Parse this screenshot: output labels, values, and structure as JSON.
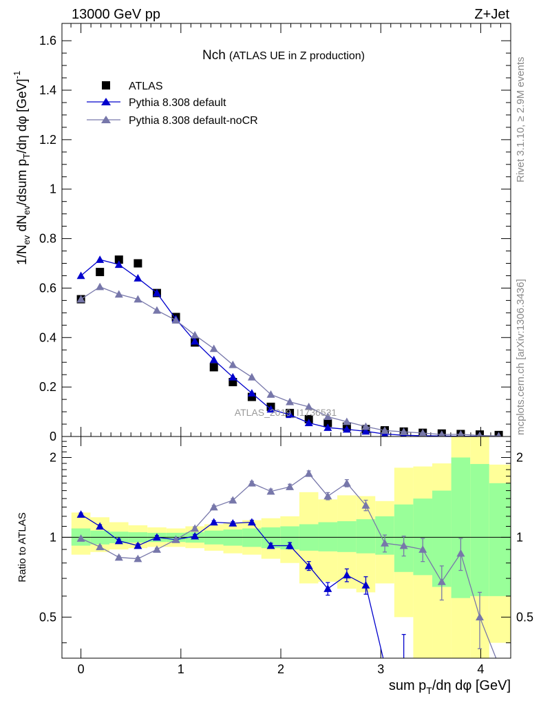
{
  "header": {
    "energy_label": "13000 GeV pp",
    "process_label": "Z+Jet"
  },
  "side_labels": {
    "rivet": "Rivet 3.1.10, ≥ 2.9M events",
    "mcplots": "mcplots.cern.ch [arXiv:1306.3436]"
  },
  "watermark": "ATLAS_2019_I1736531",
  "chart_data": [
    {
      "type": "scatter",
      "title": "Nch",
      "subtitle": "(ATLAS UE in Z production)",
      "ylabel": "1/N_ev dN_ev/dsum p_T/dη dφ [GeV]^-1",
      "ylim": [
        0,
        1.67
      ],
      "yticks": [
        0,
        0.2,
        0.4,
        0.6,
        0.8,
        1,
        1.2,
        1.4,
        1.6
      ],
      "ytick_labels": [
        "0",
        "0.2",
        "0.4",
        "0.6",
        "0.8",
        "1",
        "1.2",
        "1.4",
        "1.6"
      ],
      "xlim": [
        -0.19,
        4.3
      ],
      "legend_position": "top-left",
      "series": [
        {
          "name": "ATLAS",
          "marker": "square",
          "color": "#000000",
          "x": [
            0.0,
            0.19,
            0.38,
            0.57,
            0.76,
            0.95,
            1.14,
            1.33,
            1.52,
            1.71,
            1.9,
            2.09,
            2.28,
            2.47,
            2.66,
            2.85,
            3.04,
            3.23,
            3.42,
            3.61,
            3.8,
            3.99,
            4.18
          ],
          "y": [
            0.555,
            0.665,
            0.715,
            0.7,
            0.58,
            0.483,
            0.38,
            0.28,
            0.22,
            0.16,
            0.12,
            0.095,
            0.07,
            0.055,
            0.04,
            0.03,
            0.025,
            0.02,
            0.015,
            0.012,
            0.01,
            0.008,
            0.006
          ]
        },
        {
          "name": "Pythia 8.308 default",
          "marker": "triangle",
          "color": "#0000cc",
          "x": [
            0.0,
            0.19,
            0.38,
            0.57,
            0.76,
            0.95,
            1.14,
            1.33,
            1.52,
            1.71,
            1.9,
            2.09,
            2.28,
            2.47,
            2.66,
            2.85,
            3.04,
            3.23,
            3.42,
            3.61,
            3.8,
            3.99,
            4.18
          ],
          "y": [
            0.65,
            0.715,
            0.695,
            0.64,
            0.58,
            0.475,
            0.385,
            0.31,
            0.24,
            0.175,
            0.11,
            0.088,
            0.055,
            0.036,
            0.029,
            0.021,
            0.01,
            0.005,
            0.003,
            0.002,
            0.001,
            0.001,
            0.001
          ]
        },
        {
          "name": "Pythia 8.308 default-noCR",
          "marker": "triangle",
          "color": "#7777aa",
          "x": [
            0.0,
            0.19,
            0.38,
            0.57,
            0.76,
            0.95,
            1.14,
            1.33,
            1.52,
            1.71,
            1.9,
            2.09,
            2.28,
            2.47,
            2.66,
            2.85,
            3.04,
            3.23,
            3.42,
            3.61,
            3.8,
            3.99,
            4.18
          ],
          "y": [
            0.555,
            0.605,
            0.575,
            0.555,
            0.51,
            0.47,
            0.41,
            0.355,
            0.29,
            0.24,
            0.17,
            0.14,
            0.12,
            0.08,
            0.06,
            0.04,
            0.024,
            0.019,
            0.014,
            0.008,
            0.009,
            0.004,
            0.002
          ]
        }
      ]
    },
    {
      "type": "line",
      "ylabel": "Ratio to ATLAS",
      "xlabel": "sum p_T/dη dφ [GeV]",
      "ylim": [
        0.35,
        2.4
      ],
      "yticks": [
        0.5,
        1,
        2
      ],
      "ytick_labels": [
        "0.5",
        "1",
        "2"
      ],
      "xlim": [
        -0.19,
        4.3
      ],
      "xticks": [
        0,
        1,
        2,
        3,
        4
      ],
      "xtick_labels": [
        "0",
        "1",
        "2",
        "3",
        "4"
      ],
      "reference_line": 1,
      "bands": {
        "x_edges": [
          -0.095,
          0.095,
          0.285,
          0.475,
          0.665,
          0.855,
          1.045,
          1.235,
          1.425,
          1.615,
          1.805,
          1.995,
          2.185,
          2.375,
          2.565,
          2.755,
          2.945,
          3.135,
          3.325,
          3.515,
          3.705,
          3.895,
          4.085,
          4.3
        ],
        "outer_low": [
          0.86,
          0.88,
          0.9,
          0.91,
          0.92,
          0.92,
          0.91,
          0.89,
          0.87,
          0.86,
          0.83,
          0.8,
          0.67,
          0.68,
          0.64,
          0.62,
          0.67,
          0.5,
          0.3,
          0.3,
          0.3,
          0.3,
          0.4
        ],
        "outer_high": [
          1.24,
          1.19,
          1.14,
          1.11,
          1.09,
          1.08,
          1.1,
          1.12,
          1.14,
          1.16,
          1.18,
          1.2,
          1.48,
          1.39,
          1.44,
          1.43,
          1.37,
          1.83,
          1.85,
          1.9,
          2.4,
          2.4,
          1.88
        ],
        "inner_low": [
          0.93,
          0.94,
          0.95,
          0.955,
          0.96,
          0.96,
          0.955,
          0.94,
          0.93,
          0.92,
          0.91,
          0.9,
          0.89,
          0.885,
          0.88,
          0.87,
          0.86,
          0.74,
          0.72,
          0.65,
          0.59,
          0.6,
          0.6
        ],
        "inner_high": [
          1.08,
          1.06,
          1.05,
          1.045,
          1.04,
          1.04,
          1.045,
          1.06,
          1.07,
          1.08,
          1.09,
          1.1,
          1.12,
          1.14,
          1.15,
          1.17,
          1.2,
          1.33,
          1.4,
          1.5,
          2.0,
          1.89,
          1.6
        ],
        "outer_color": "#ffff99",
        "inner_color": "#99ff99"
      },
      "series": [
        {
          "name": "Pythia 8.308 default",
          "marker": "triangle",
          "color": "#0000cc",
          "x": [
            0.0,
            0.19,
            0.38,
            0.57,
            0.76,
            0.95,
            1.14,
            1.33,
            1.52,
            1.71,
            1.9,
            2.09,
            2.28,
            2.47,
            2.66,
            2.85,
            3.04,
            3.23
          ],
          "y": [
            1.22,
            1.1,
            0.97,
            0.93,
            1.0,
            0.98,
            1.01,
            1.14,
            1.13,
            1.14,
            0.93,
            0.93,
            0.78,
            0.64,
            0.72,
            0.66,
            0.33,
            0.33
          ],
          "err": [
            0.015,
            0.015,
            0.015,
            0.015,
            0.015,
            0.015,
            0.015,
            0.015,
            0.015,
            0.02,
            0.02,
            0.025,
            0.03,
            0.035,
            0.04,
            0.05,
            0.0,
            0.1
          ]
        },
        {
          "name": "Pythia 8.308 default-noCR",
          "marker": "triangle",
          "color": "#7777aa",
          "x": [
            0.0,
            0.19,
            0.38,
            0.57,
            0.76,
            0.95,
            1.14,
            1.33,
            1.52,
            1.71,
            1.9,
            2.09,
            2.28,
            2.47,
            2.66,
            2.85,
            3.04,
            3.23,
            3.42,
            3.61,
            3.8,
            3.99,
            4.18
          ],
          "y": [
            0.99,
            0.92,
            0.84,
            0.83,
            0.9,
            0.98,
            1.08,
            1.3,
            1.38,
            1.6,
            1.49,
            1.55,
            1.74,
            1.43,
            1.6,
            1.32,
            0.95,
            0.93,
            0.9,
            0.68,
            0.87,
            0.5,
            0.33
          ],
          "err": [
            0.01,
            0.01,
            0.01,
            0.01,
            0.01,
            0.012,
            0.015,
            0.018,
            0.02,
            0.025,
            0.03,
            0.035,
            0.04,
            0.045,
            0.05,
            0.06,
            0.07,
            0.08,
            0.09,
            0.1,
            0.12,
            0.12,
            0.0
          ]
        }
      ]
    }
  ]
}
